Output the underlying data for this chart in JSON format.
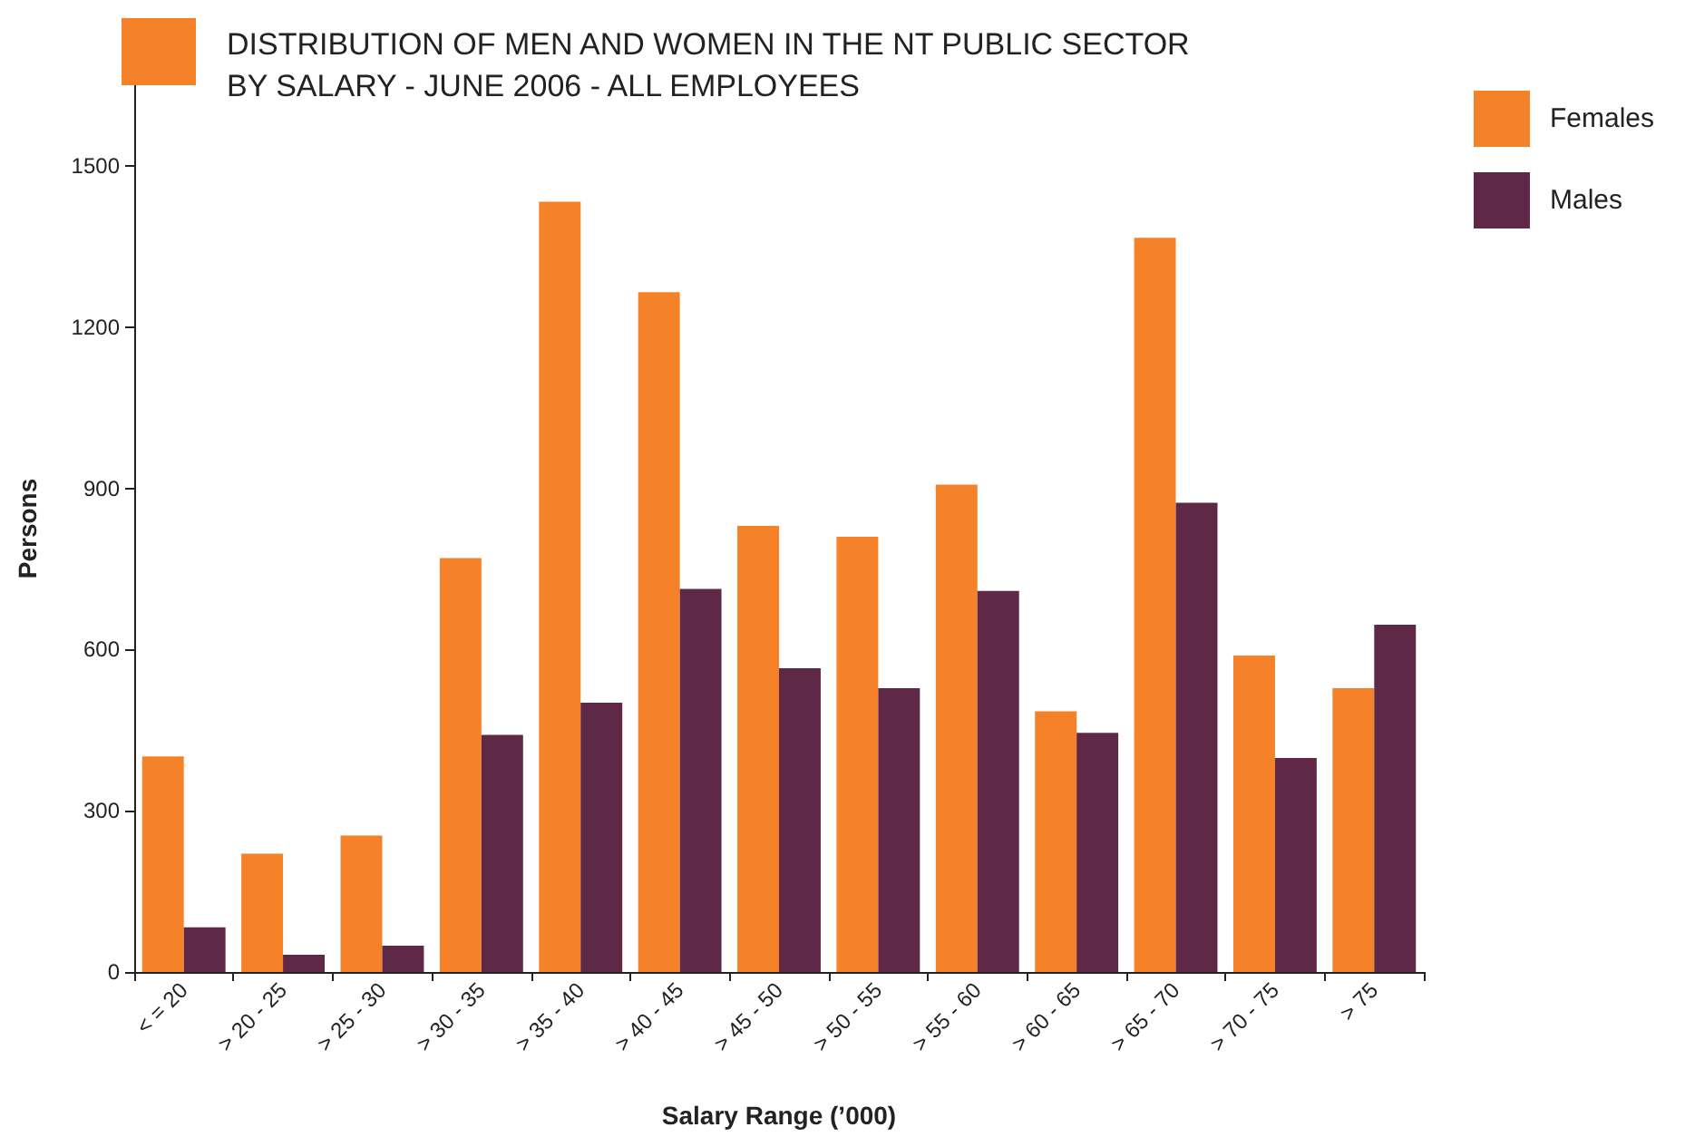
{
  "chart_data": {
    "type": "bar",
    "title": "DISTRIBUTION OF MEN AND WOMEN IN THE NT PUBLIC SECTOR\nBY SALARY - JUNE 2006 - ALL EMPLOYEES",
    "xlabel": "Salary Range (’000)",
    "ylabel": "Persons",
    "categories": [
      "< = 20",
      "> 20 - 25",
      "> 25 - 30",
      "> 30 - 35",
      "> 35 - 40",
      "> 40 - 45",
      "> 45 - 50",
      "> 50 - 55",
      "> 55 - 60",
      "> 60 - 65",
      "> 65 - 70",
      "> 70 - 75",
      "> 75"
    ],
    "series": [
      {
        "name": "Females",
        "color": "#f58229",
        "values": [
          401,
          220,
          254,
          770,
          1433,
          1265,
          830,
          810,
          907,
          485,
          1366,
          589,
          528
        ]
      },
      {
        "name": "Males",
        "color": "#5e2846",
        "values": [
          83,
          32,
          49,
          441,
          501,
          713,
          565,
          528,
          709,
          445,
          873,
          398,
          646
        ]
      }
    ],
    "ylim": [
      0,
      1650
    ],
    "yticks": [
      0,
      300,
      600,
      900,
      1200,
      1500
    ],
    "grid": false,
    "legend": "top right"
  }
}
